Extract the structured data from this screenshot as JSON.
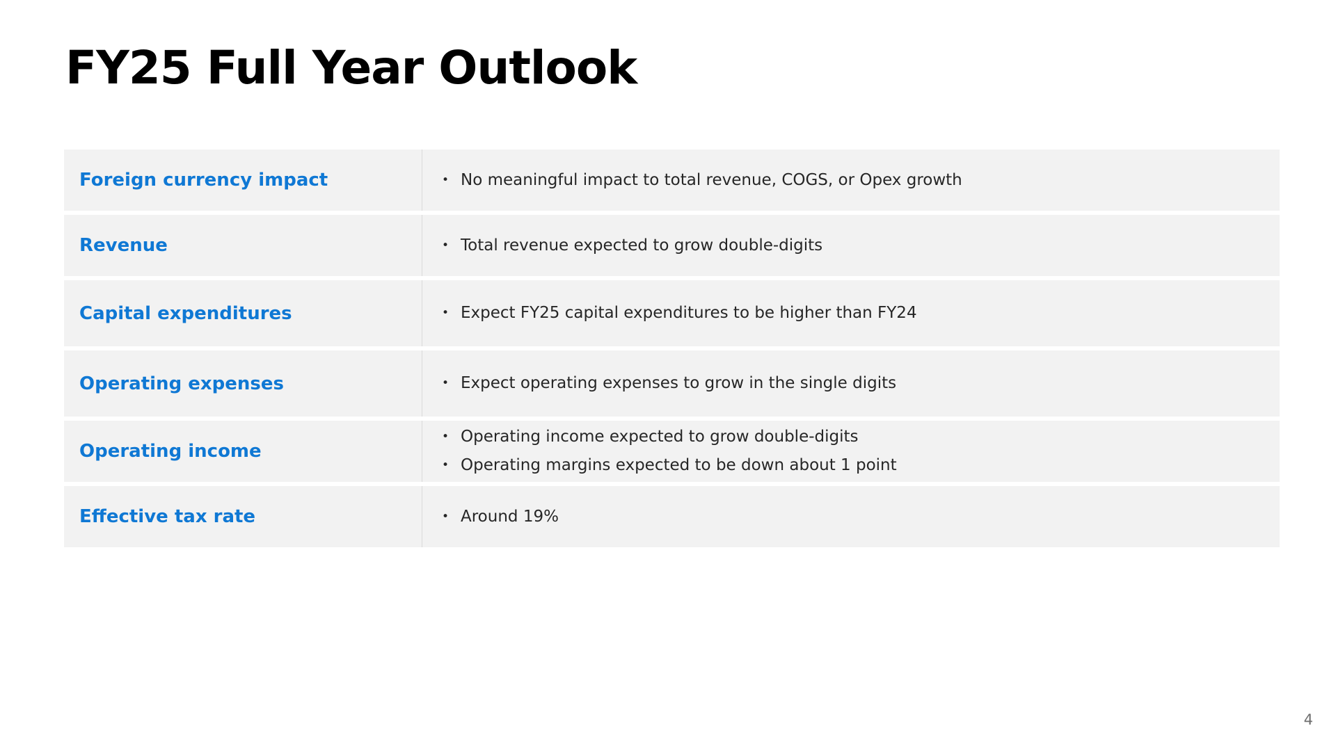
{
  "slide": {
    "title": "FY25 Full Year Outlook",
    "page_number": "4"
  },
  "rows": [
    {
      "label": "Foreign currency impact",
      "bullets": [
        "No meaningful impact to total revenue, COGS, or Opex growth"
      ]
    },
    {
      "label": "Revenue",
      "bullets": [
        "Total revenue expected to grow double-digits"
      ]
    },
    {
      "label": "Capital expenditures",
      "bullets": [
        "Expect FY25 capital expenditures to be higher than FY24"
      ]
    },
    {
      "label": "Operating expenses",
      "bullets": [
        "Expect operating expenses to grow in the single digits"
      ]
    },
    {
      "label": "Operating income",
      "bullets": [
        "Operating income expected to grow double-digits",
        "Operating margins expected to be down about 1 point"
      ]
    },
    {
      "label": "Effective tax rate",
      "bullets": [
        "Around 19%"
      ]
    }
  ],
  "colors": {
    "label_blue": "#0f78d4",
    "row_background": "#f2f2f2",
    "body_text": "#262626"
  }
}
